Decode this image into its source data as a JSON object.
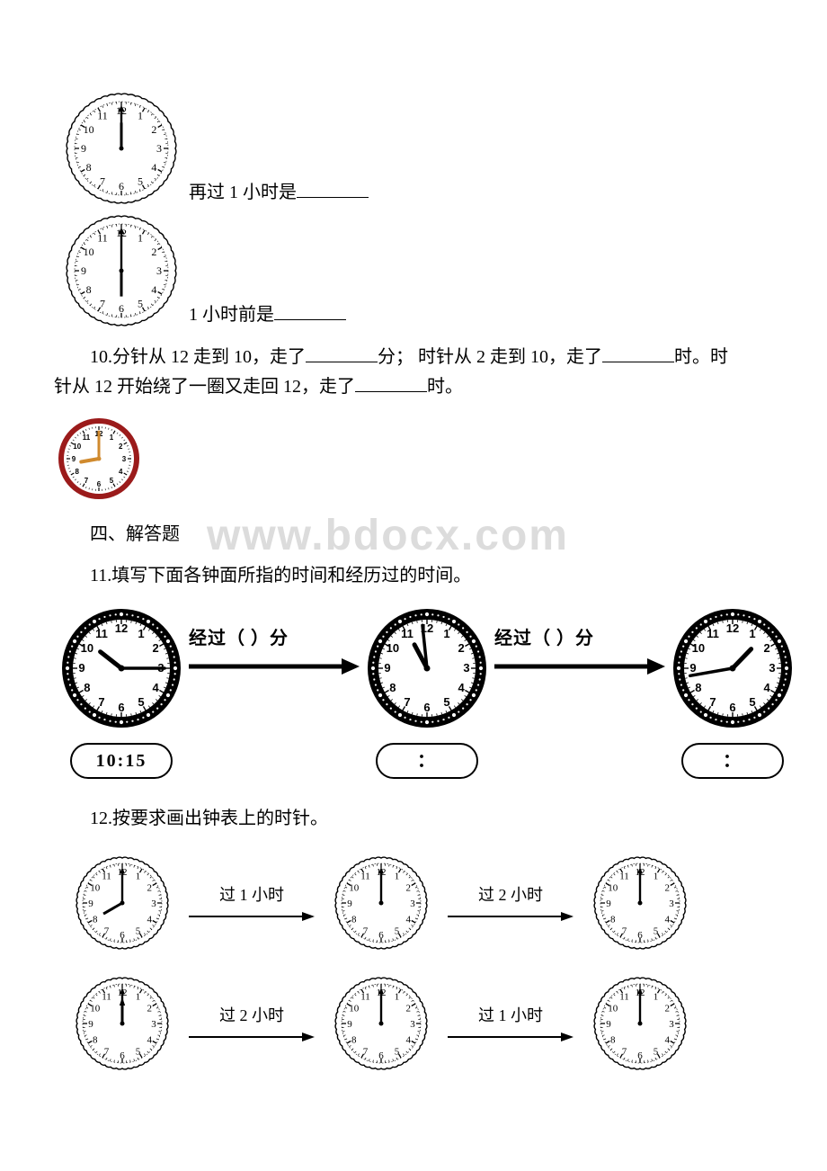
{
  "q9": {
    "clock1": {
      "hour_angle": 0,
      "minute_angle": 0
    },
    "text1_prefix": "再过 1 小时是",
    "clock2": {
      "hour_angle": 180,
      "minute_angle": 0
    },
    "text2_prefix": "1 小时前是"
  },
  "q10": {
    "line1_a": "10.分针从 12 走到 10，走了",
    "line1_b": "分；  时针从 2 走到 10，走了",
    "line1_c": "时。时",
    "line2_a": "针从 12 开始绕了一圈又走回 12，走了",
    "line2_b": "时。",
    "mini_clock": {
      "hour_angle": -100,
      "minute_angle": 0,
      "rim_color": "#9b1b1b",
      "hand_color": "#d08a2e"
    }
  },
  "section4_title": "四、解答题",
  "q11": {
    "caption": "11.填写下面各钟面所指的时间和经历过的时间。",
    "arrow1_label": "经过（      ）分",
    "arrow2_label": "经过（      ）分",
    "box1": "10:15",
    "box2": "：",
    "box3": "：",
    "clock1": {
      "hour_angle": -52,
      "minute_angle": 90
    },
    "clock2": {
      "hour_angle": -28,
      "minute_angle": -6
    },
    "clock3": {
      "hour_angle": 44,
      "minute_angle": -100
    }
  },
  "q12": {
    "caption": "12.按要求画出钟表上的时针。",
    "labels": {
      "r1a": "过 1 小时",
      "r1b": "过 2 小时",
      "r2a": "过 2 小时",
      "r2b": "过 1 小时"
    },
    "clocks": {
      "r1c1": {
        "hour_angle": -120,
        "minute_angle": 0
      },
      "r1c2": {
        "hour_angle": null,
        "minute_angle": 0
      },
      "r1c3": {
        "hour_angle": null,
        "minute_angle": 0
      },
      "r2c1": {
        "hour_angle": 0,
        "minute_angle": 0,
        "triangle_tip": true
      },
      "r2c2": {
        "hour_angle": null,
        "minute_angle": 0
      },
      "r2c3": {
        "hour_angle": null,
        "minute_angle": 0
      }
    }
  },
  "watermark": "www.bdocx.com",
  "clock_style": {
    "scallop": {
      "outer_r": 60,
      "inner_r": 52,
      "number_r": 42,
      "font_size": 12,
      "stroke": "#000000",
      "fill": "#ffffff",
      "tick_r1": 52,
      "tick_r2": 48
    },
    "scallop_small": {
      "size": 120,
      "outer_r": 50,
      "inner_r": 44,
      "number_r": 35,
      "font_size": 11,
      "stroke": "#000000",
      "fill": "#ffffff"
    },
    "bold_ring": {
      "size": 150,
      "outer_r": 66,
      "ring_w": 12,
      "face_r": 54,
      "number_r": 44,
      "font_size": 13,
      "font_weight": "bold",
      "dot_r1": 54,
      "dot_r2": 50
    }
  }
}
